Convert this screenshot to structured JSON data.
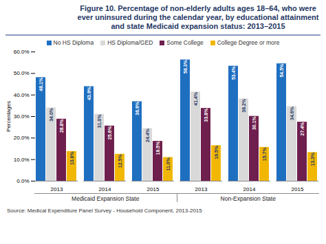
{
  "chart_data": {
    "type": "bar",
    "title": "Figure 10. Percentage of non-elderly adults ages 18–64, who were ever uninsured during the calendar year, by educational attainment and state Medicaid expansion status: 2013–2015",
    "categories": [
      "2013",
      "2014",
      "2015",
      "2013",
      "2014",
      "2015"
    ],
    "category_groups": [
      "Medicaid Expansion State",
      "Medicaid Expansion State",
      "Medicaid Expansion State",
      "Non-Expansion State",
      "Non-Expansion State",
      "Non-Expansion State"
    ],
    "series": [
      {
        "name": "No HS Diploma",
        "color": "#1f6fc1",
        "values": [
          48.1,
          43.9,
          36.9,
          56.3,
          53.4,
          54.5
        ],
        "value_labels": [
          "48.1%",
          "43.9%",
          "36.9%",
          "56.3%",
          "53.4%",
          "54.5%"
        ]
      },
      {
        "name": "HS Diploma/GED",
        "color": "#d9d9d9",
        "values": [
          34.0,
          31.0,
          24.4,
          41.4,
          38.2,
          34.6
        ],
        "value_labels": [
          "34.0%",
          "31.0%",
          "24.4%",
          "41.4%",
          "38.2%",
          "34.6%"
        ]
      },
      {
        "name": "Some College",
        "color": "#6e1f4e",
        "values": [
          28.8,
          25.6,
          18.5,
          33.8,
          30.1,
          27.4
        ],
        "value_labels": [
          "28.8%",
          "25.6%",
          "18.5%",
          "33.8%",
          "30.1%",
          "27.4%"
        ]
      },
      {
        "name": "College Degree or more",
        "color": "#f2b705",
        "values": [
          13.8,
          12.5,
          11.0,
          16.5,
          15.7,
          13.3
        ],
        "value_labels": [
          "13.8%",
          "12.5%",
          "11.0%",
          "16.5%",
          "15.7%",
          "13.3%"
        ]
      }
    ],
    "ylabel": "Percentages",
    "ylim": [
      0,
      60
    ],
    "yticks": [
      {
        "value": 0,
        "label": "0.0%"
      },
      {
        "value": 10,
        "label": "10.0%"
      },
      {
        "value": 20,
        "label": "20.0%"
      },
      {
        "value": 30,
        "label": "30.0%"
      },
      {
        "value": 40,
        "label": "40.0%"
      },
      {
        "value": 50,
        "label": "50.0%"
      },
      {
        "value": 60,
        "label": "60.0%"
      }
    ],
    "grid": false,
    "legend": "top",
    "data_labels": true,
    "source": "Source:  Medical Expenditure Panel Survey - Household Component, 2013-2015"
  }
}
